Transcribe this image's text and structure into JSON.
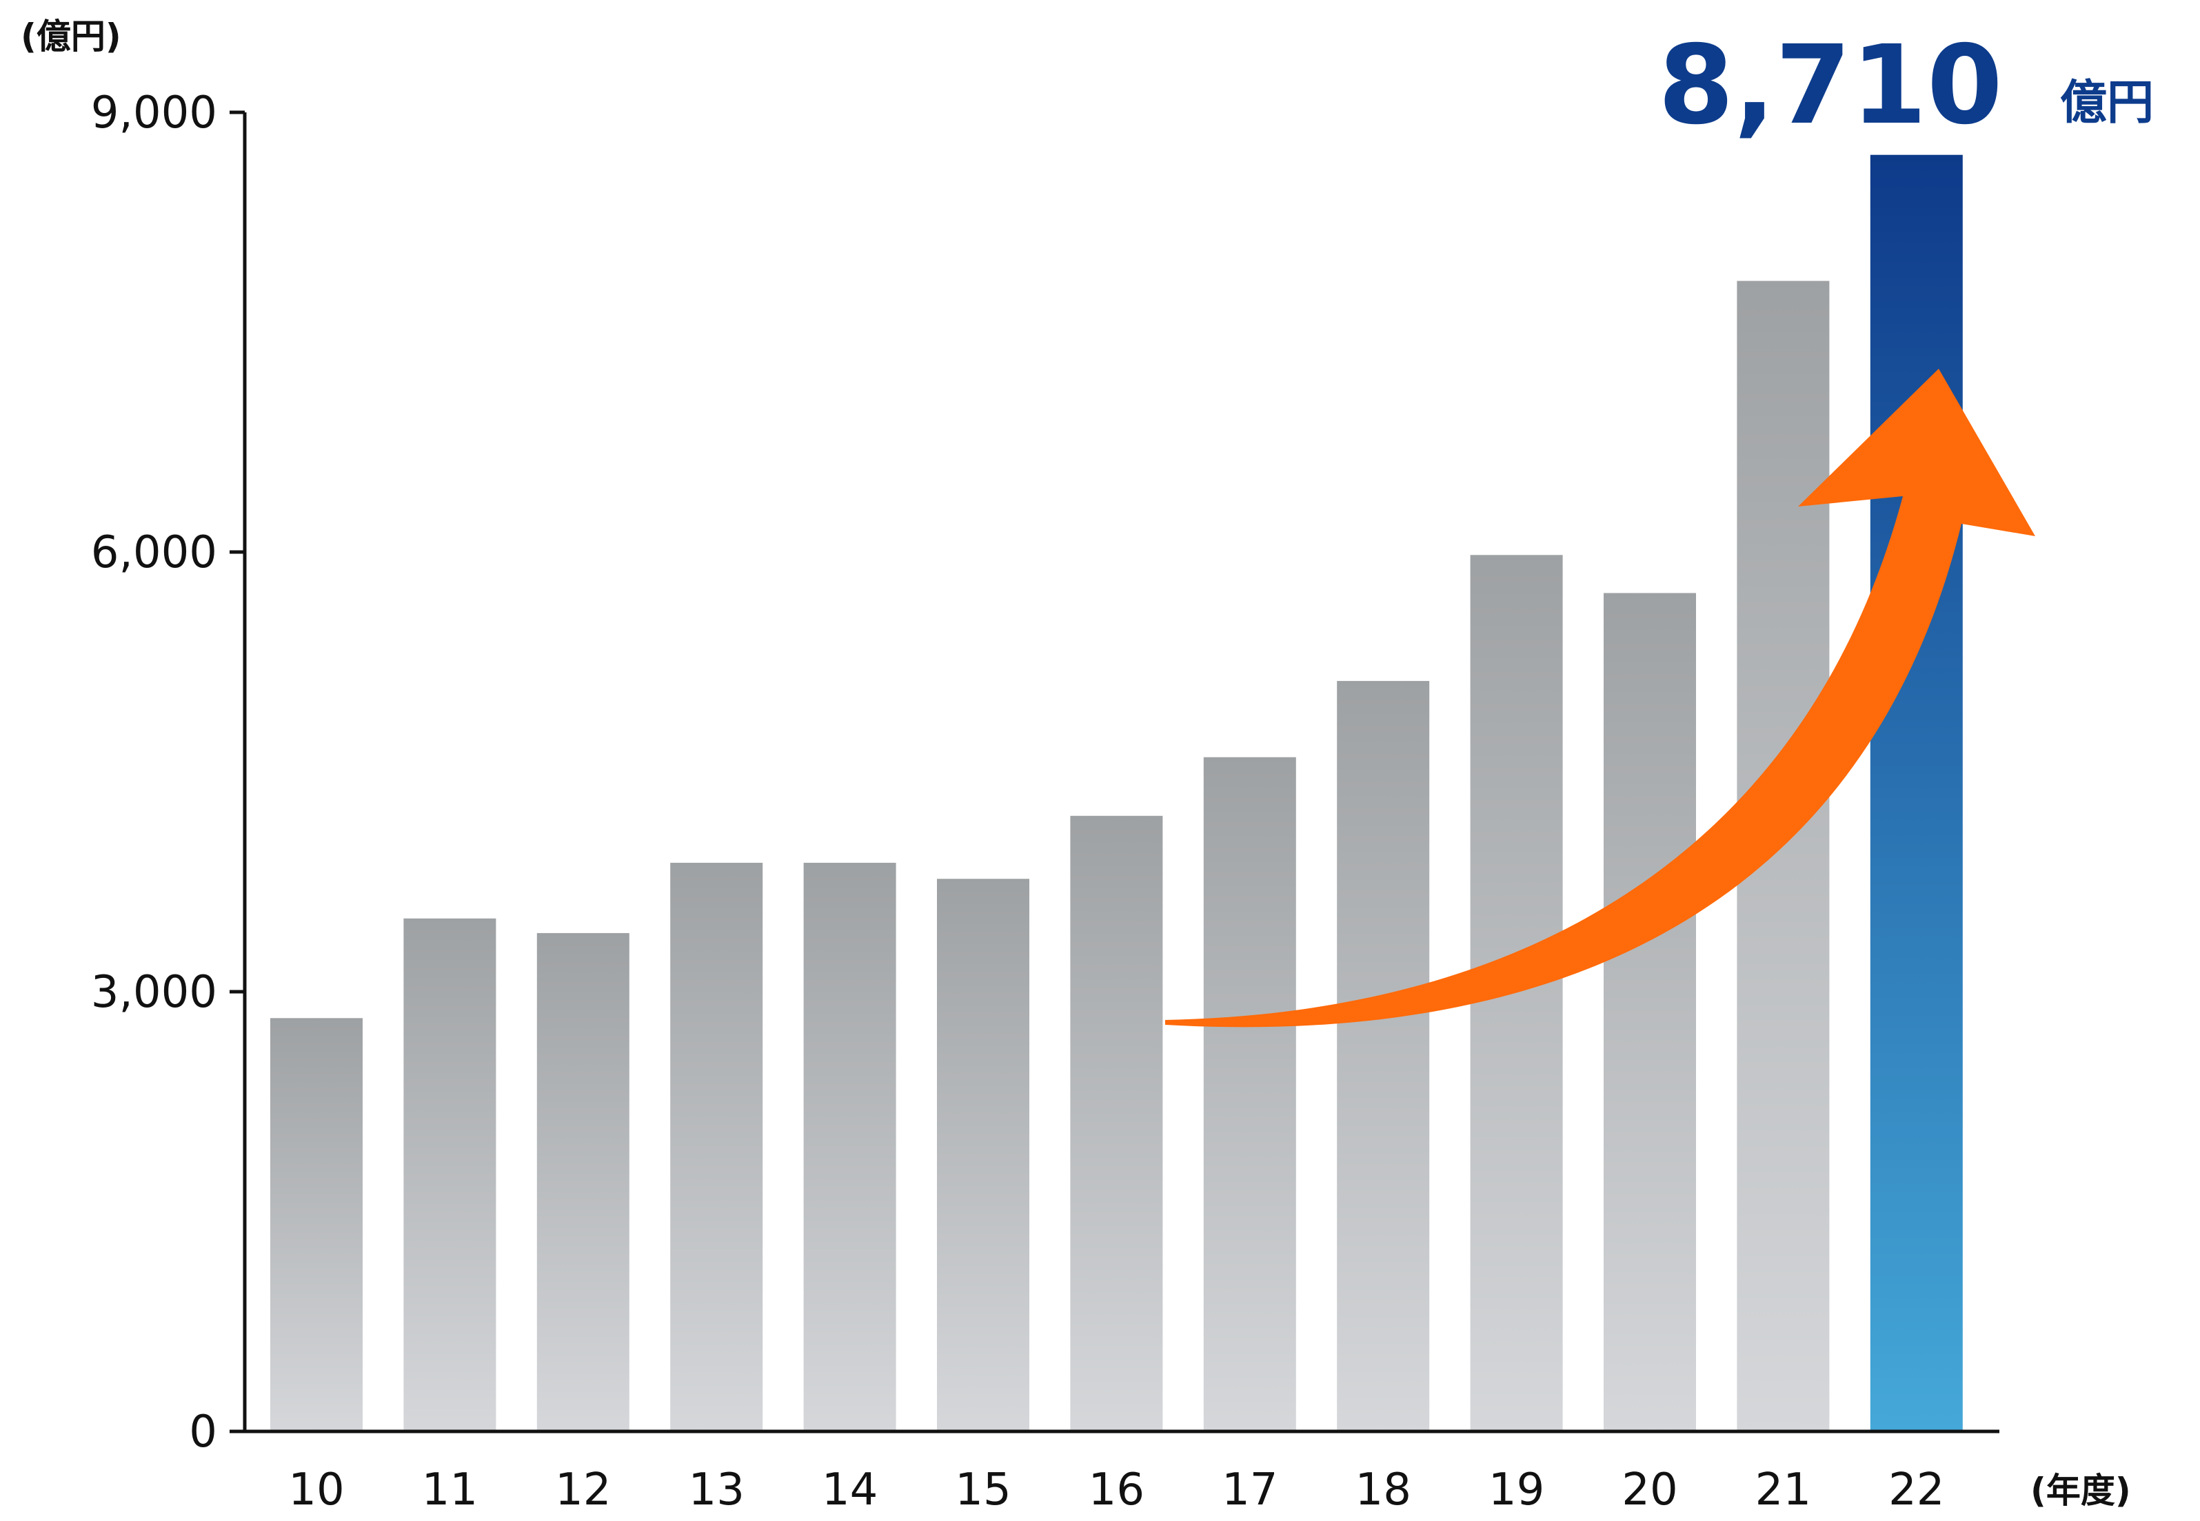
{
  "chart_data": {
    "type": "bar",
    "categories": [
      "10",
      "11",
      "12",
      "13",
      "14",
      "15",
      "16",
      "17",
      "18",
      "19",
      "20",
      "21",
      "22"
    ],
    "values": [
      2820,
      3500,
      3400,
      3880,
      3880,
      3770,
      4200,
      4600,
      5120,
      5980,
      5720,
      7850,
      8710
    ],
    "ylim": [
      0,
      9000
    ],
    "yticks": [
      "0",
      "3,000",
      "6,000",
      "9,000"
    ],
    "ytick_values": [
      0,
      3000,
      6000,
      9000
    ],
    "y_unit": "(億円)",
    "x_unit": "(年度)",
    "highlight": {
      "value_text": "8,710",
      "unit": "億円"
    },
    "grid": false,
    "trend_arrow": true,
    "colors": {
      "bar_top": "#9ea1a3",
      "bar_bottom": "#d5d7da",
      "highlight_top": "#0e3a8a",
      "highlight_bottom": "#45a8d8",
      "arrow": "#ff6a0a",
      "highlight_text": "#0d3c8c",
      "axis": "#111111"
    }
  }
}
